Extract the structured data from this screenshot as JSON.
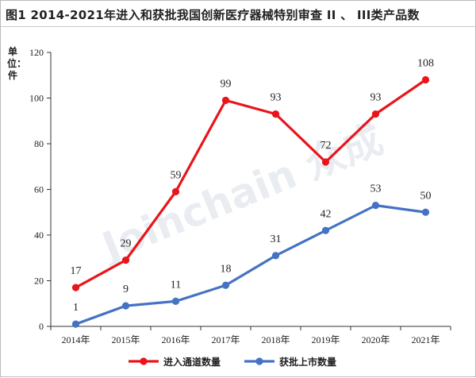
{
  "title": "图1  2014-2021年进入和获批我国创新医疗器械特别审查 II 、 III类产品数",
  "watermark": "Joinchain 众成",
  "chart_data": {
    "type": "line",
    "title": "图1  2014-2021年进入和获批我国创新医疗器械特别审查 II 、 III类产品数",
    "ylabel": "单位：件",
    "xlabel": "",
    "categories": [
      "2014年",
      "2015年",
      "2016年",
      "2017年",
      "2018年",
      "2019年",
      "2020年",
      "2021年"
    ],
    "ylim": [
      0,
      120
    ],
    "yticks": [
      0,
      20,
      40,
      60,
      80,
      100,
      120
    ],
    "series": [
      {
        "name": "进入通道数量",
        "color": "#e8151b",
        "values": [
          17,
          29,
          59,
          99,
          93,
          72,
          93,
          108
        ]
      },
      {
        "name": "获批上市数量",
        "color": "#4472c4",
        "values": [
          1,
          9,
          11,
          18,
          31,
          42,
          53,
          50
        ]
      }
    ],
    "legend_position": "bottom",
    "grid": false
  }
}
